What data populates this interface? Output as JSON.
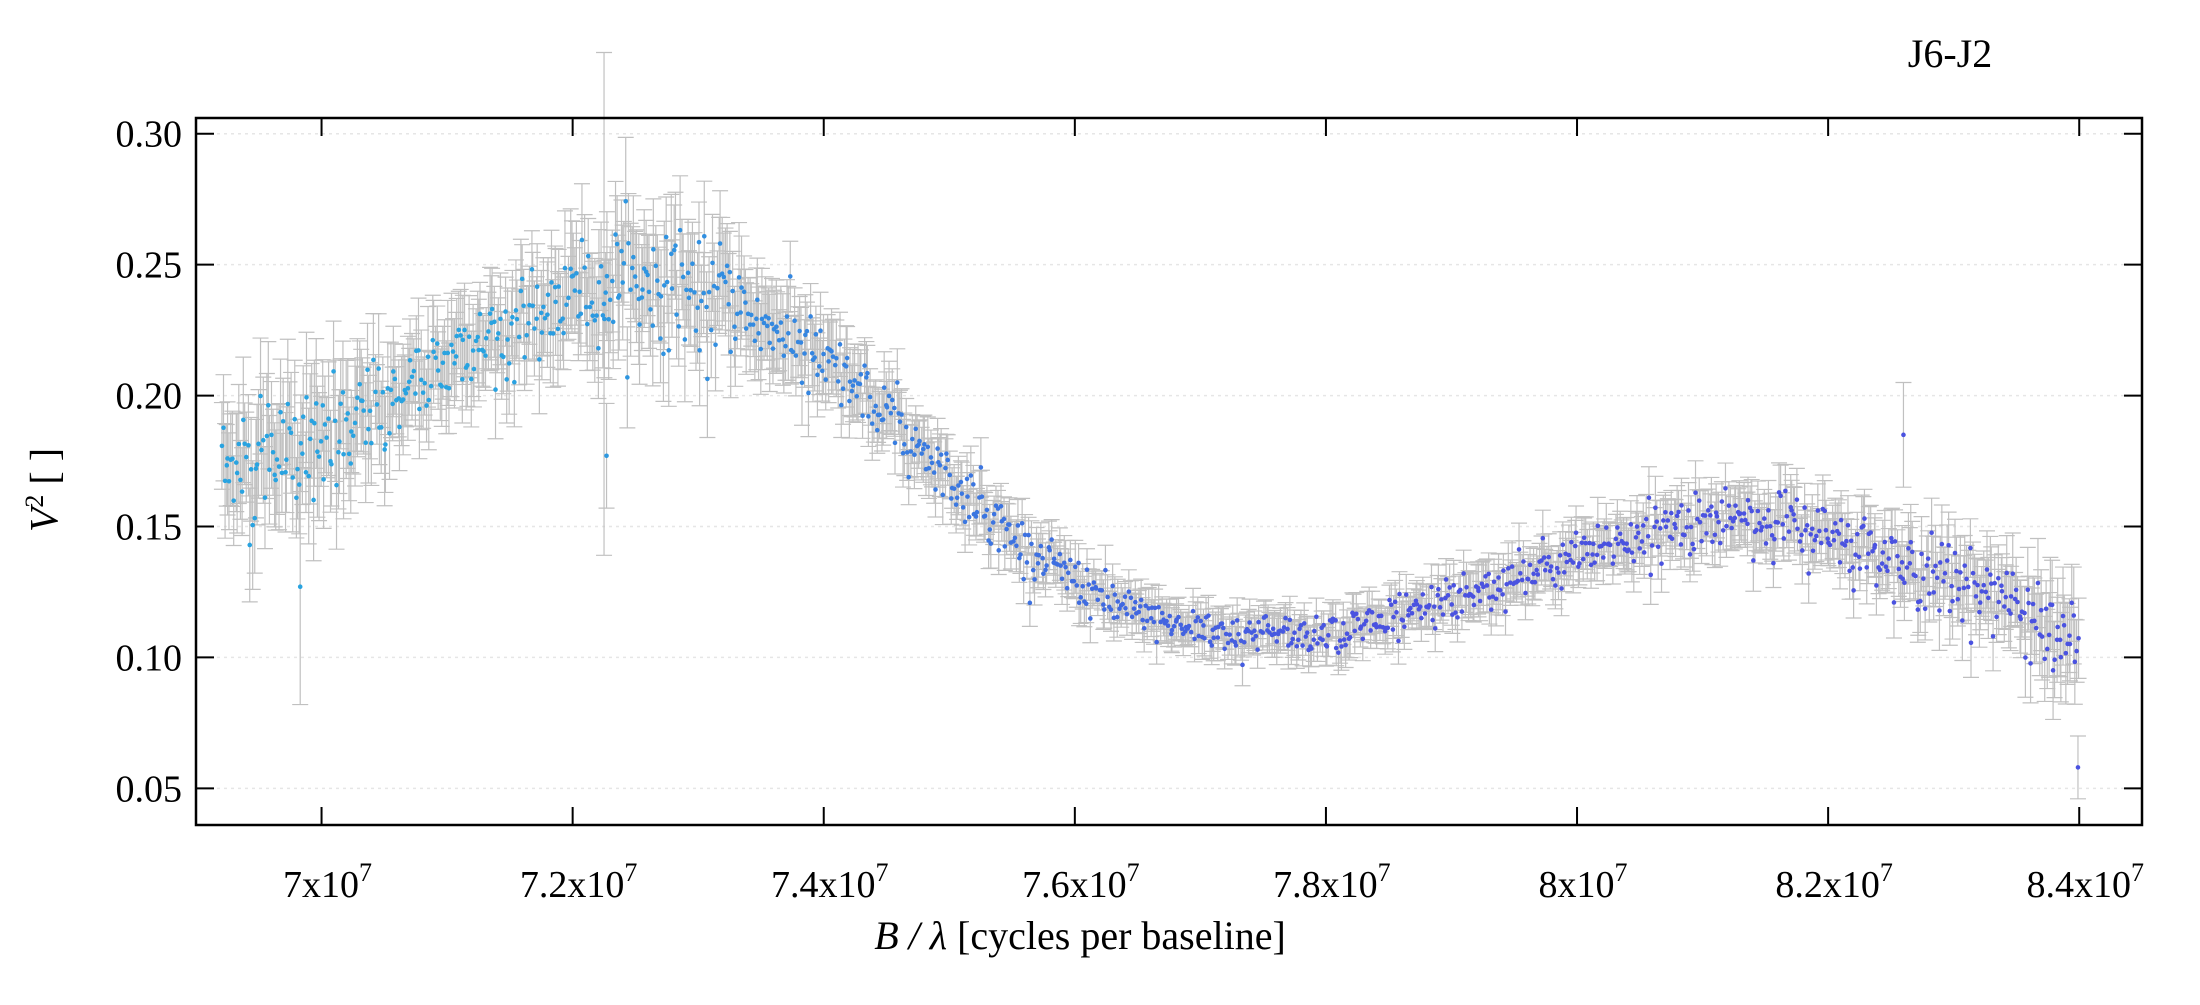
{
  "chart_data": {
    "type": "scatter",
    "title": "J6-J2",
    "xlabel_italic": "B / λ",
    "xlabel_rest": " [cycles per baseline]",
    "ylabel_italic": "V",
    "ylabel_sup": "2",
    "ylabel_rest": " [ ]",
    "xlim": [
      69000000,
      84500000
    ],
    "ylim": [
      0.036,
      0.306
    ],
    "x_ticks": [
      {
        "value": 70000000,
        "base": "7x10",
        "exp": "7"
      },
      {
        "value": 72000000,
        "base": "7.2x10",
        "exp": "7"
      },
      {
        "value": 74000000,
        "base": "7.4x10",
        "exp": "7"
      },
      {
        "value": 76000000,
        "base": "7.6x10",
        "exp": "7"
      },
      {
        "value": 78000000,
        "base": "7.8x10",
        "exp": "7"
      },
      {
        "value": 80000000,
        "base": "8x10",
        "exp": "7"
      },
      {
        "value": 82000000,
        "base": "8.2x10",
        "exp": "7"
      },
      {
        "value": 84000000,
        "base": "8.4x10",
        "exp": "7"
      }
    ],
    "y_ticks": [
      {
        "value": 0.05,
        "label": "0.05"
      },
      {
        "value": 0.1,
        "label": "0.10"
      },
      {
        "value": 0.15,
        "label": "0.15"
      },
      {
        "value": 0.2,
        "label": "0.20"
      },
      {
        "value": 0.25,
        "label": "0.25"
      },
      {
        "value": 0.3,
        "label": "0.30"
      }
    ],
    "grid": true,
    "colors": {
      "point_start": "#29a3e0",
      "point_end": "#4a52e0",
      "errorbar": "#c0c0c0",
      "grid": "#e6e6e6",
      "axis": "#000000"
    },
    "series": [
      {
        "x": [
          69200000,
          69600000,
          70000000,
          70400000,
          70800000,
          71200000,
          71600000,
          72000000,
          72400000,
          72800000,
          73200000,
          73600000,
          74000000,
          74400000,
          74800000,
          75200000,
          75600000,
          76000000,
          76400000,
          76800000,
          77200000,
          77600000,
          78000000,
          78400000,
          78800000,
          79200000,
          79600000,
          80000000,
          80400000,
          80800000,
          81200000,
          81600000,
          82000000,
          82400000,
          82800000,
          83200000,
          83600000,
          84000000
        ],
        "y": [
          0.172,
          0.176,
          0.18,
          0.192,
          0.208,
          0.22,
          0.228,
          0.238,
          0.243,
          0.242,
          0.236,
          0.226,
          0.212,
          0.196,
          0.178,
          0.16,
          0.142,
          0.13,
          0.118,
          0.112,
          0.11,
          0.109,
          0.11,
          0.113,
          0.119,
          0.125,
          0.131,
          0.137,
          0.145,
          0.151,
          0.153,
          0.152,
          0.146,
          0.138,
          0.132,
          0.126,
          0.118,
          0.1
        ],
        "yerr": [
          0.018,
          0.02,
          0.02,
          0.018,
          0.016,
          0.015,
          0.016,
          0.018,
          0.02,
          0.019,
          0.017,
          0.015,
          0.013,
          0.011,
          0.01,
          0.009,
          0.008,
          0.008,
          0.007,
          0.007,
          0.007,
          0.007,
          0.007,
          0.007,
          0.007,
          0.008,
          0.008,
          0.009,
          0.009,
          0.01,
          0.01,
          0.01,
          0.01,
          0.011,
          0.012,
          0.012,
          0.013,
          0.016
        ]
      }
    ],
    "outliers": [
      {
        "x": 72270000,
        "y": 0.177,
        "yerr": 0.02
      },
      {
        "x": 69830000,
        "y": 0.127,
        "yerr": 0.045
      },
      {
        "x": 72250000,
        "y": 0.235,
        "yerr": 0.096
      },
      {
        "x": 83990000,
        "y": 0.058,
        "yerr": 0.012
      },
      {
        "x": 82600000,
        "y": 0.185,
        "yerr": 0.02
      }
    ]
  }
}
